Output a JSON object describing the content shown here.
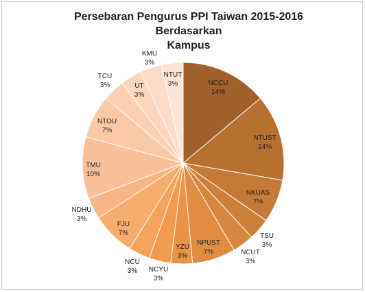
{
  "chart_data": {
    "type": "pie",
    "title": "Persebaran Pengurus PPI Taiwan 2015-2016 Berdasarkan\nKampus",
    "slices": [
      {
        "label": "NCCU",
        "pct": "14%",
        "value": 14,
        "color": "#a0602a"
      },
      {
        "label": "NTUST",
        "pct": "14%",
        "value": 14,
        "color": "#b7702f"
      },
      {
        "label": "NKUAS",
        "pct": "7%",
        "value": 7,
        "color": "#c57a38"
      },
      {
        "label": "TSU",
        "pct": "3%",
        "value": 3.5,
        "color": "#cd803a"
      },
      {
        "label": "NCUT",
        "pct": "3%",
        "value": 3.5,
        "color": "#d6873e"
      },
      {
        "label": "NPUST",
        "pct": "7%",
        "value": 7,
        "color": "#e08d42"
      },
      {
        "label": "YZU",
        "pct": "3%",
        "value": 3.5,
        "color": "#ea9346"
      },
      {
        "label": "NCYU",
        "pct": "3%",
        "value": 3.5,
        "color": "#f29a4e"
      },
      {
        "label": "NCU",
        "pct": "3%",
        "value": 3.5,
        "color": "#f5a25a"
      },
      {
        "label": "FJU",
        "pct": "7%",
        "value": 7,
        "color": "#f6ac6c"
      },
      {
        "label": "NDHU",
        "pct": "3%",
        "value": 3.5,
        "color": "#f6b584"
      },
      {
        "label": "TMU",
        "pct": "10%",
        "value": 10,
        "color": "#f7c09a"
      },
      {
        "label": "NTOU",
        "pct": "7%",
        "value": 7,
        "color": "#f9c9a6"
      },
      {
        "label": "TCU",
        "pct": "3%",
        "value": 3.5,
        "color": "#fad0b2"
      },
      {
        "label": "UT",
        "pct": "3%",
        "value": 3.5,
        "color": "#fbd6bd"
      },
      {
        "label": "KMU",
        "pct": "3%",
        "value": 3.5,
        "color": "#fcdcc8"
      },
      {
        "label": "NTUT",
        "pct": "3%",
        "value": 3.5,
        "color": "#fde4d5"
      }
    ]
  }
}
